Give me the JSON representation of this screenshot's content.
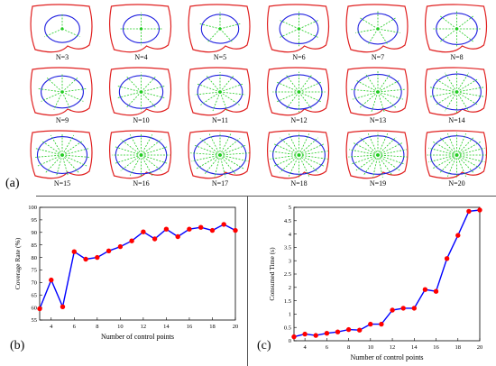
{
  "panel_labels": {
    "a": "(a)",
    "b": "(b)",
    "c": "(c)"
  },
  "shape_labels": [
    "N=3",
    "N=4",
    "N=5",
    "N=6",
    "N=7",
    "N=8",
    "N=9",
    "N=10",
    "N=11",
    "N=12",
    "N=13",
    "N=14",
    "N=15",
    "N=16",
    "N=17",
    "N=18",
    "N=19",
    "N=20"
  ],
  "colors": {
    "outer_boundary": "#e02020",
    "fitted_curve": "#2020e0",
    "rays": "#22cc22",
    "line": "#0000ff",
    "marker": "#ff0000"
  },
  "chart_data": [
    {
      "type": "line",
      "xlabel": "Number of control points",
      "ylabel": "Coverage Rate (%)",
      "xlim": [
        3,
        20
      ],
      "ylim": [
        55,
        100
      ],
      "xticks": [
        4,
        6,
        8,
        10,
        12,
        14,
        16,
        18,
        20
      ],
      "yticks": [
        55,
        60,
        65,
        70,
        75,
        80,
        85,
        90,
        95,
        100
      ],
      "grid": false,
      "x": [
        3,
        4,
        5,
        6,
        7,
        8,
        9,
        10,
        11,
        12,
        13,
        14,
        15,
        16,
        17,
        18,
        19,
        20
      ],
      "series": [
        {
          "values": [
            59.5,
            71,
            60.3,
            82.3,
            79.3,
            80,
            82.6,
            84.3,
            86.6,
            90.2,
            87.4,
            91.3,
            88.3,
            91.3,
            92,
            90.8,
            93.2,
            90.8
          ]
        }
      ]
    },
    {
      "type": "line",
      "xlabel": "Number of control points",
      "ylabel": "Consumed Time (s)",
      "xlim": [
        3,
        20
      ],
      "ylim": [
        0,
        5
      ],
      "xticks": [
        4,
        6,
        8,
        10,
        12,
        14,
        16,
        18,
        20
      ],
      "yticks": [
        0,
        0.5,
        1,
        1.5,
        2,
        2.5,
        3,
        3.5,
        4,
        4.5,
        5
      ],
      "grid": false,
      "x": [
        3,
        4,
        5,
        6,
        7,
        8,
        9,
        10,
        11,
        12,
        13,
        14,
        15,
        16,
        17,
        18,
        19,
        20
      ],
      "series": [
        {
          "values": [
            0.15,
            0.25,
            0.2,
            0.28,
            0.33,
            0.42,
            0.4,
            0.62,
            0.62,
            1.15,
            1.22,
            1.22,
            1.92,
            1.85,
            3.08,
            3.95,
            4.85,
            4.9
          ]
        }
      ]
    }
  ]
}
